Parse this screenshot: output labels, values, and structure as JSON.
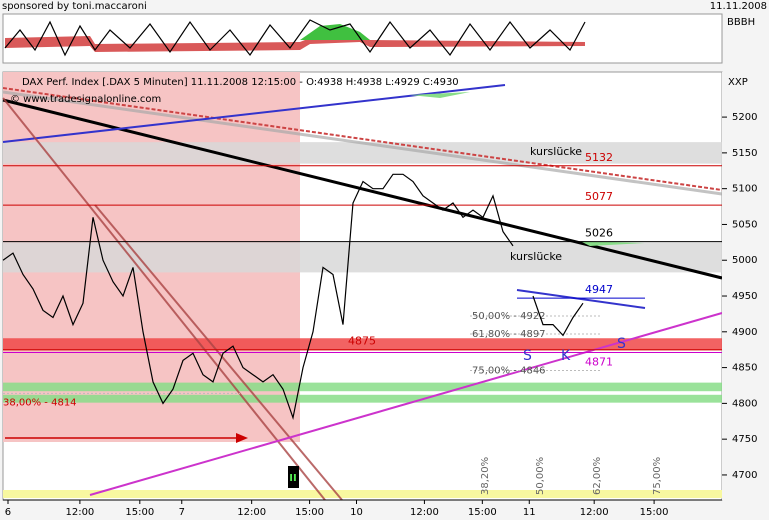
{
  "header": {
    "sponsor": "sponsored by toni.maccaroni",
    "date": "11.11.2008"
  },
  "chart_data": {
    "type": "line",
    "title": "DAX Perf. Index [.DAX  5 Minuten] 11.11.2008 12:15:00 - O:4938 H:4938 L:4929 C:4930",
    "copyright": "© www.tradesignalonline.com",
    "indicator_label": "BBBH",
    "axis_label": "XXP",
    "color": "#000000",
    "values": [
      5000,
      5010,
      4980,
      4960,
      4930,
      4920,
      4950,
      4910,
      4940,
      5060,
      5000,
      4970,
      4950,
      4990,
      4900,
      4830,
      4800,
      4820,
      4860,
      4870,
      4840,
      4830,
      4870,
      4880,
      4850,
      4840,
      4830,
      4840,
      4820,
      4780,
      4850,
      4900,
      4990,
      4980,
      4910,
      5080,
      5110,
      5100,
      5100,
      5120,
      5120,
      5110,
      5090,
      5080,
      5070,
      5080,
      5060,
      5070,
      5060,
      5090,
      5040,
      5020,
      null,
      4950,
      4910,
      4910,
      4895,
      4920,
      4940
    ],
    "xlim": [
      0,
      72
    ],
    "xticks": [
      {
        "value": 0.5,
        "label": "6"
      },
      {
        "value": 7.7,
        "label": "12:00"
      },
      {
        "value": 13.7,
        "label": "15:00"
      },
      {
        "value": 17.9,
        "label": "7"
      },
      {
        "value": 24.9,
        "label": "12:00"
      },
      {
        "value": 30.7,
        "label": "15:00"
      },
      {
        "value": 35.4,
        "label": "10"
      },
      {
        "value": 42.2,
        "label": "12:00"
      },
      {
        "value": 48,
        "label": "15:00"
      },
      {
        "value": 52.7,
        "label": "11"
      },
      {
        "value": 59.2,
        "label": "12:00"
      },
      {
        "value": 65.2,
        "label": "15:00"
      }
    ],
    "ylim": [
      4665,
      5263
    ],
    "yticks": [
      4700,
      4750,
      4800,
      4850,
      4900,
      4950,
      5000,
      5050,
      5100,
      5150,
      5200
    ],
    "zones": [
      {
        "low": 5135,
        "high": 5165,
        "color": "#d8d8d8"
      },
      {
        "low": 4983,
        "high": 5025,
        "color": "#d8d8d8"
      },
      {
        "low": 4874,
        "high": 4891,
        "color": "#f04848"
      },
      {
        "low": 4817,
        "high": 4829,
        "color": "#88dd88"
      },
      {
        "low": 4801,
        "high": 4812,
        "color": "#88dd88"
      }
    ],
    "levels": [
      {
        "value": 5132,
        "color": "#cc0000"
      },
      {
        "value": 5077,
        "color": "#cc0000"
      },
      {
        "value": 5026,
        "color": "#000000"
      },
      {
        "value": 4947,
        "color": "#0000cc"
      },
      {
        "value": 4875,
        "color": "#cc0000"
      },
      {
        "value": 4871,
        "color": "#cc00cc"
      }
    ],
    "fib_levels": [
      {
        "value": 4922,
        "label": "50,00% - 4922"
      },
      {
        "value": 4897,
        "label": "61,80% - 4897"
      },
      {
        "value": 4846,
        "label": "75,00% - 4846"
      },
      {
        "value": 4814,
        "label": "38,00% - 4814"
      }
    ],
    "gap_labels": [
      "kurslücke",
      "kurslücke"
    ],
    "pattern_labels": [
      "S",
      "K",
      "S"
    ],
    "time_fibs": [
      "38,20%",
      "50,00%",
      "62,00%",
      "75,00%"
    ],
    "marker": "II"
  }
}
